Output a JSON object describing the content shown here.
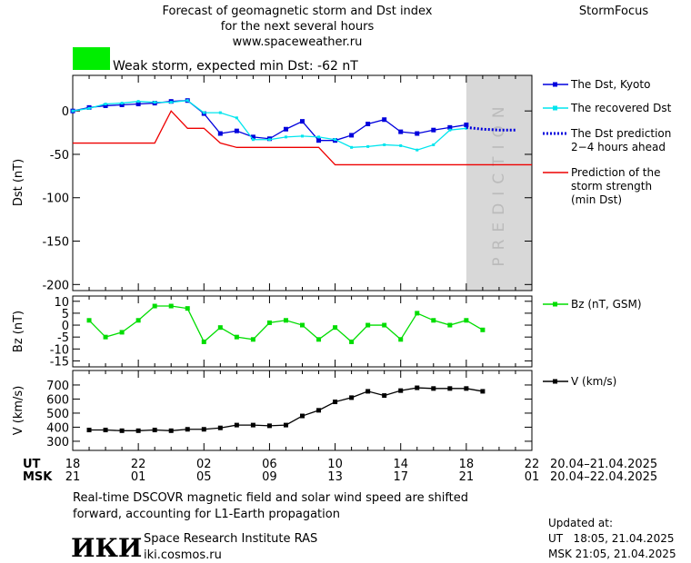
{
  "header": {
    "title_lines": [
      "Forecast of geomagnetic storm and Dst index",
      "for the next several hours",
      "www.spaceweather.ru"
    ],
    "brand": "StormFocus"
  },
  "chart_data": [
    {
      "type": "line",
      "ylabel": "Dst (nT)",
      "xlim": [
        0,
        28
      ],
      "ylim": [
        -207,
        41
      ],
      "yticks": [
        0,
        -50,
        -100,
        -150,
        -200
      ],
      "storm_label": "Weak storm, expected min Dst: -62 nT",
      "storm_color": "#00ee00",
      "prediction_region": [
        24,
        28
      ],
      "prediction_label": "PREDICTION",
      "series": [
        {
          "name": [
            "The Dst, Kyoto"
          ],
          "color": "#0000dd",
          "marker": "square",
          "x": [
            0,
            1,
            2,
            3,
            4,
            5,
            6,
            7,
            8,
            9,
            10,
            11,
            12,
            13,
            14,
            15,
            16,
            17,
            18,
            19,
            20,
            21,
            22,
            23,
            24
          ],
          "values": [
            0,
            4,
            6,
            7,
            8,
            9,
            11,
            12,
            -3,
            -26,
            -23,
            -30,
            -32,
            -21,
            -12,
            -34,
            -34,
            -28,
            -15,
            -10,
            -24,
            -26,
            -22,
            -19,
            -16
          ]
        },
        {
          "name": [
            "The recovered Dst"
          ],
          "color": "#00e5ee",
          "marker": "square-small",
          "x": [
            0,
            1,
            2,
            3,
            4,
            5,
            6,
            7,
            8,
            9,
            10,
            11,
            12,
            13,
            14,
            15,
            16,
            17,
            18,
            19,
            20,
            21,
            22,
            23,
            24
          ],
          "values": [
            0,
            3,
            8,
            9,
            11,
            10,
            10,
            12,
            -2,
            -2,
            -8,
            -33,
            -33,
            -30,
            -29,
            -30,
            -33,
            -42,
            -41,
            -39,
            -40,
            -45,
            -39,
            -22,
            -20
          ]
        },
        {
          "name": [
            "The Dst prediction",
            "2−4 hours ahead"
          ],
          "color": "#0000dd",
          "dash": "dotted",
          "x": [
            24,
            25,
            26,
            27
          ],
          "values": [
            -19,
            -21,
            -22,
            -22
          ]
        },
        {
          "name": [
            "Prediction of the",
            "storm strength",
            "(min Dst)"
          ],
          "color": "#ee0000",
          "x": [
            0,
            5,
            6,
            7,
            8,
            9,
            10,
            15,
            16,
            28
          ],
          "values": [
            -37,
            -37,
            0,
            -20,
            -20,
            -37,
            -42,
            -42,
            -62,
            -62
          ]
        }
      ]
    },
    {
      "type": "line",
      "ylabel": "Bz (nT)",
      "xlim": [
        0,
        28
      ],
      "ylim": [
        -17.5,
        12.2
      ],
      "yticks": [
        10,
        5,
        0,
        -5,
        -10,
        -15
      ],
      "series": [
        {
          "name": [
            "Bz (nT, GSM)"
          ],
          "color": "#00dd00",
          "marker": "square",
          "x": [
            1,
            2,
            3,
            4,
            5,
            6,
            7,
            8,
            9,
            10,
            11,
            12,
            13,
            14,
            15,
            16,
            17,
            18,
            19,
            20,
            21,
            22,
            23,
            24,
            25
          ],
          "values": [
            2,
            -5,
            -3,
            2,
            8,
            8,
            7,
            -7,
            -1,
            -5,
            -6,
            1,
            2,
            0,
            -6,
            -1,
            -7,
            0,
            0,
            -6,
            5,
            2,
            0,
            2,
            -2
          ]
        }
      ]
    },
    {
      "type": "line",
      "ylabel": "V (km/s)",
      "xlim": [
        0,
        28
      ],
      "ylim": [
        235,
        803
      ],
      "yticks": [
        700,
        600,
        500,
        400,
        300
      ],
      "series": [
        {
          "name": [
            "V (km/s)"
          ],
          "color": "#000000",
          "marker": "square",
          "x": [
            1,
            2,
            3,
            4,
            5,
            6,
            7,
            8,
            9,
            10,
            11,
            12,
            13,
            14,
            15,
            16,
            17,
            18,
            19,
            20,
            21,
            22,
            23,
            24,
            25
          ],
          "values": [
            380,
            380,
            375,
            375,
            380,
            375,
            385,
            385,
            395,
            415,
            415,
            410,
            415,
            480,
            520,
            580,
            610,
            655,
            625,
            660,
            680,
            675,
            675,
            675,
            655
          ]
        }
      ],
      "xrows": [
        {
          "name": "UT",
          "ticks": [
            {
              "value": 0,
              "label": "18"
            },
            {
              "value": 4,
              "label": "22"
            },
            {
              "value": 8,
              "label": "02"
            },
            {
              "value": 12,
              "label": "06"
            },
            {
              "value": 16,
              "label": "10"
            },
            {
              "value": 20,
              "label": "14"
            },
            {
              "value": 24,
              "label": "18"
            },
            {
              "value": 28,
              "label": "22"
            }
          ],
          "range": "20.04–21.04.2025"
        },
        {
          "name": "MSK",
          "ticks": [
            {
              "value": 0,
              "label": "21"
            },
            {
              "value": 4,
              "label": "01"
            },
            {
              "value": 8,
              "label": "05"
            },
            {
              "value": 12,
              "label": "09"
            },
            {
              "value": 16,
              "label": "13"
            },
            {
              "value": 20,
              "label": "17"
            },
            {
              "value": 24,
              "label": "21"
            },
            {
              "value": 28,
              "label": "01"
            }
          ],
          "range": "20.04–22.04.2025"
        }
      ]
    }
  ],
  "footer": {
    "note_lines": [
      "Real-time DSCOVR magnetic field and solar wind speed are shifted",
      "forward, accounting for L1-Earth propagation"
    ],
    "logo": "ИКИ",
    "institute": "Space Research Institute RAS",
    "site": "iki.cosmos.ru",
    "updated_lines": [
      "Updated at:",
      "UT   18:05, 21.04.2025",
      "MSK 21:05, 21.04.2025"
    ]
  }
}
